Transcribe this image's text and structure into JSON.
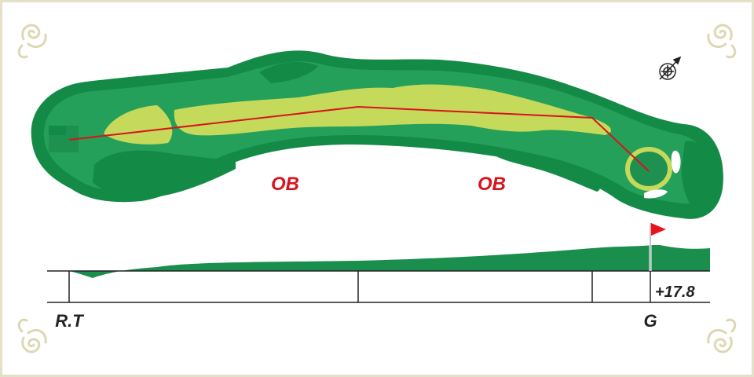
{
  "hazards": [
    {
      "id": "ob-1",
      "text": "OB"
    },
    {
      "id": "ob-2",
      "text": "OB"
    }
  ],
  "elevation": {
    "tee_label": "R.T",
    "green_label": "G",
    "green_elevation": "+17.8"
  },
  "colors": {
    "frame": "#e4e1c6",
    "ornament": "#dcd8b4",
    "rough": "#24a05a",
    "trees": "#138b47",
    "fairway": "#c5d95a",
    "green": "#1e9050",
    "sand": "#ffffff",
    "shot_line": "#d7141e",
    "ob_text": "#d7141e",
    "flag": "#e8141e",
    "profile": "#1a8e4c",
    "axis": "#222222"
  },
  "icons": {
    "compass": "compass-icon",
    "flag": "flag-icon",
    "ornament": "scroll-ornament-icon"
  }
}
